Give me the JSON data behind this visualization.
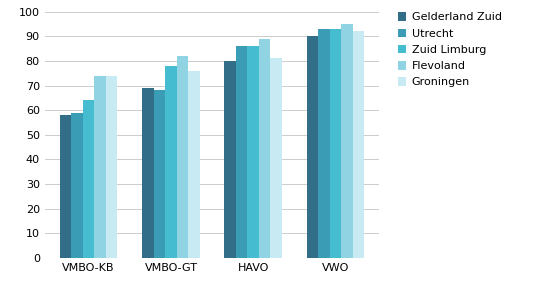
{
  "categories": [
    "VMBO-KB",
    "VMBO-GT",
    "HAVO",
    "VWO"
  ],
  "series": {
    "Gelderland Zuid": [
      58,
      69,
      80,
      90
    ],
    "Utrecht": [
      59,
      68,
      86,
      93
    ],
    "Zuid Limburg": [
      64,
      78,
      86,
      93
    ],
    "Flevoland": [
      74,
      82,
      89,
      95
    ],
    "Groningen": [
      74,
      76,
      81,
      92
    ]
  },
  "colors": {
    "Gelderland Zuid": "#336e88",
    "Utrecht": "#3a9db5",
    "Zuid Limburg": "#45bcd0",
    "Flevoland": "#90d4e4",
    "Groningen": "#c8eaf2"
  },
  "ylim": [
    0,
    100
  ],
  "yticks": [
    0,
    10,
    20,
    30,
    40,
    50,
    60,
    70,
    80,
    90,
    100
  ],
  "background_color": "#ffffff",
  "grid_color": "#cccccc",
  "bar_width": 0.14,
  "legend_fontsize": 8,
  "tick_fontsize": 8
}
